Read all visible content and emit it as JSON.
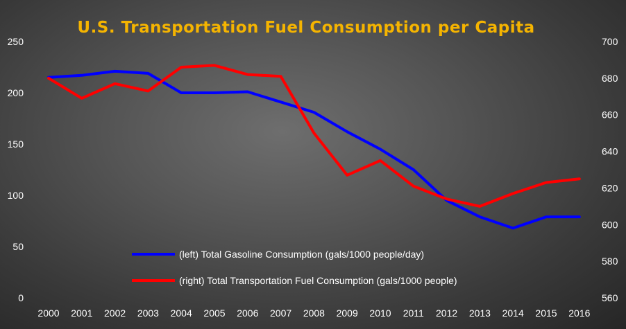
{
  "chart_data": {
    "type": "line",
    "title": "U.S. Transportation Fuel Consumption per Capita",
    "title_color": "#f5b400",
    "x": [
      "2000",
      "2001",
      "2002",
      "2003",
      "2004",
      "2005",
      "2006",
      "2007",
      "2008",
      "2009",
      "2010",
      "2011",
      "2012",
      "2013",
      "2014",
      "2015",
      "2016"
    ],
    "series": [
      {
        "name": "(left) Total Gasoline Consumption (gals/1000 people/day)",
        "axis": "left",
        "color": "#0000ff",
        "values": [
          215,
          217,
          221,
          219,
          200,
          200,
          201,
          191,
          181,
          162,
          145,
          125,
          95,
          79,
          68,
          79,
          79
        ]
      },
      {
        "name": "(right) Total Transportation Fuel Consumption (gals/1000 people)",
        "axis": "right",
        "color": "#ff0000",
        "values": [
          680,
          669,
          677,
          673,
          686,
          687,
          682,
          681,
          650,
          627,
          635,
          621,
          614,
          610,
          617,
          623,
          625
        ]
      }
    ],
    "y_left": {
      "min": 0,
      "max": 250,
      "ticks": [
        "0",
        "50",
        "100",
        "150",
        "200",
        "250"
      ]
    },
    "y_right": {
      "min": 560,
      "max": 700,
      "ticks": [
        "560",
        "580",
        "600",
        "620",
        "640",
        "660",
        "680",
        "700"
      ]
    },
    "grid": false,
    "legend_placement": "bottom-left-inside"
  }
}
